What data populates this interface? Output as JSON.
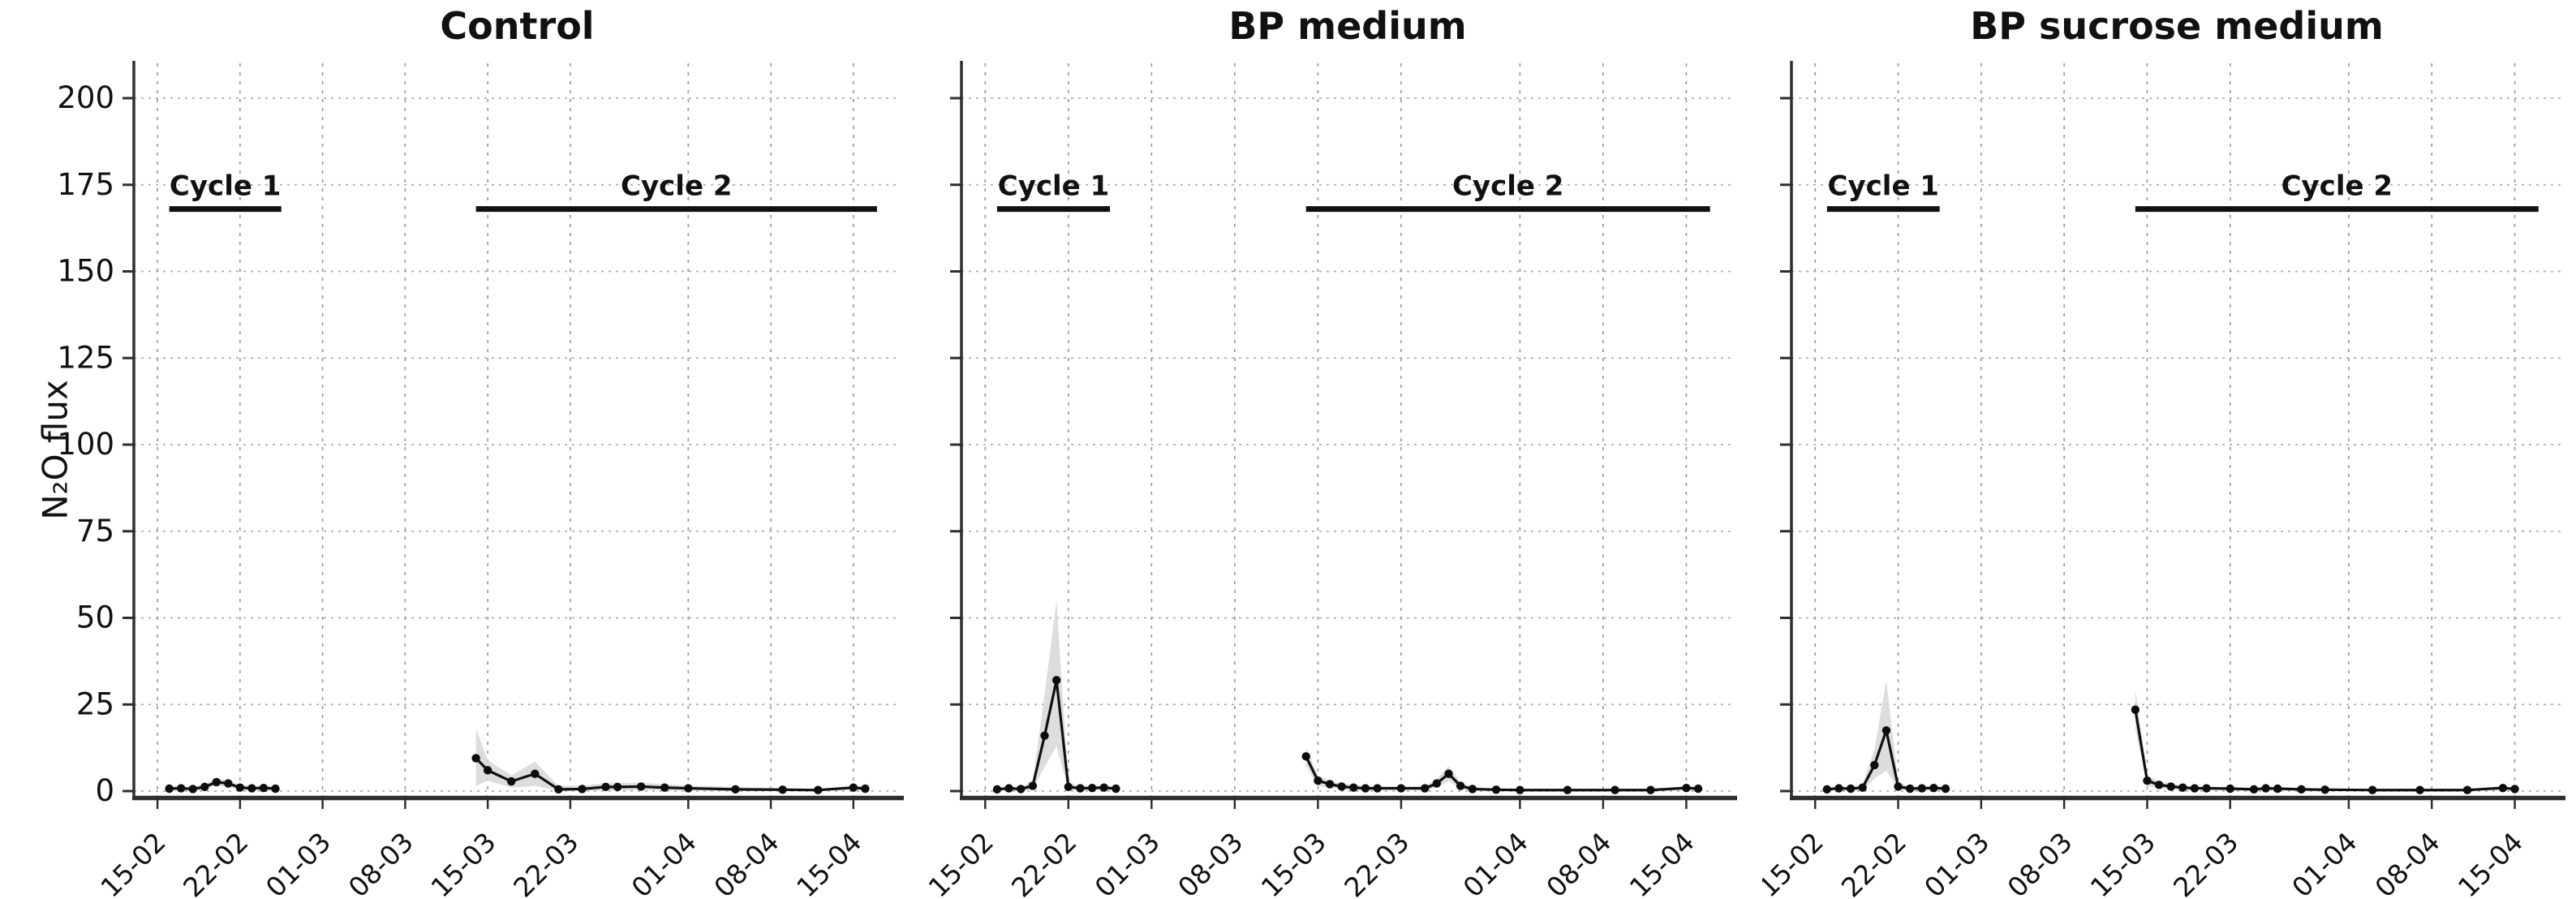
{
  "figure": {
    "ylabel": "N₂O flux",
    "colors": {
      "line": "#101010",
      "marker": "#0d0d0d",
      "ribbon": "#d7d7d7",
      "grid_vertical": "#8a8a8a",
      "grid_horizontal": "#a0a0a0",
      "axis": "#2e2e2e",
      "cycle_bar": "#111111",
      "background": "#ffffff"
    },
    "ylim": [
      -4,
      211
    ],
    "xlim_days": [
      13,
      78
    ],
    "yticks": [
      {
        "v": 0,
        "label": "0"
      },
      {
        "v": 25,
        "label": "25"
      },
      {
        "v": 50,
        "label": "50"
      },
      {
        "v": 75,
        "label": "75"
      },
      {
        "v": 100,
        "label": "100"
      },
      {
        "v": 125,
        "label": "125"
      },
      {
        "v": 150,
        "label": "150"
      },
      {
        "v": 175,
        "label": "175"
      },
      {
        "v": 200,
        "label": "200"
      }
    ],
    "xticks": [
      {
        "d": 15,
        "label": "15-02"
      },
      {
        "d": 22,
        "label": "22-02"
      },
      {
        "d": 29,
        "label": "01-03"
      },
      {
        "d": 36,
        "label": "08-03"
      },
      {
        "d": 43,
        "label": "15-03"
      },
      {
        "d": 50,
        "label": "22-03"
      },
      {
        "d": 60,
        "label": "01-04"
      },
      {
        "d": 67,
        "label": "08-04"
      },
      {
        "d": 74,
        "label": "15-04"
      }
    ]
  },
  "chart_data": {
    "type": "line",
    "title": "",
    "ylabel": "N₂O flux",
    "note": "x values are day numbers where 01-02 = day 1 (Feb=+0, Mar=+28, Apr=+59); shaded ribbons are lo/hi bands",
    "panels": [
      {
        "title": "Control",
        "show_ytick_labels": true,
        "cycle_bars": [
          {
            "label": "Cycle 1",
            "from": 16,
            "to": 25.5,
            "at": 168
          },
          {
            "label": "Cycle 2",
            "from": 42,
            "to": 76,
            "at": 168
          }
        ],
        "series": [
          {
            "name": "Cycle 1",
            "x": [
              16,
              17,
              18,
              19,
              20,
              21,
              22,
              23,
              24,
              25
            ],
            "y": [
              0.7,
              0.8,
              0.6,
              1.2,
              2.6,
              2.2,
              1.0,
              0.8,
              0.9,
              0.7
            ],
            "hi": [
              1.4,
              1.5,
              1.2,
              2.0,
              3.6,
              3.2,
              1.8,
              1.5,
              1.6,
              1.3
            ],
            "lo": [
              0.2,
              0.2,
              0.1,
              0.5,
              1.6,
              1.2,
              0.4,
              0.2,
              0.3,
              0.2
            ]
          },
          {
            "name": "Cycle 2",
            "x": [
              42,
              43,
              45,
              47,
              49,
              51,
              53,
              54,
              56,
              58,
              60,
              64,
              68,
              71,
              74,
              75
            ],
            "y": [
              9.5,
              6.0,
              2.8,
              5.0,
              0.5,
              0.6,
              1.2,
              1.2,
              1.3,
              1.0,
              0.8,
              0.5,
              0.4,
              0.3,
              1.0,
              0.7
            ],
            "hi": [
              18,
              9,
              4.5,
              8.5,
              1.5,
              1.5,
              2.3,
              2.3,
              2.4,
              2.0,
              1.6,
              1.2,
              0.9,
              0.6,
              1.6,
              1.1
            ],
            "lo": [
              1.5,
              3,
              1.0,
              1.5,
              0,
              0,
              0.2,
              0.2,
              0.3,
              0.2,
              0.1,
              0,
              0,
              0,
              0.4,
              0.2
            ]
          }
        ]
      },
      {
        "title": "BP medium",
        "show_ytick_labels": false,
        "cycle_bars": [
          {
            "label": "Cycle 1",
            "from": 16,
            "to": 25.5,
            "at": 168
          },
          {
            "label": "Cycle 2",
            "from": 42,
            "to": 76,
            "at": 168
          }
        ],
        "series": [
          {
            "name": "Cycle 1",
            "x": [
              16,
              17,
              18,
              19,
              20,
              21,
              22,
              23,
              24,
              25,
              26
            ],
            "y": [
              0.5,
              0.8,
              0.6,
              1.5,
              16,
              32,
              1.2,
              0.8,
              0.9,
              1.0,
              0.7
            ],
            "hi": [
              1.0,
              1.4,
              1.1,
              3.0,
              28,
              55,
              2.5,
              1.4,
              1.5,
              1.7,
              1.2
            ],
            "lo": [
              0.1,
              0.2,
              0.1,
              0.5,
              7,
              13,
              0.4,
              0.2,
              0.3,
              0.4,
              0.2
            ]
          },
          {
            "name": "Cycle 2",
            "x": [
              42,
              43,
              44,
              45,
              46,
              47,
              48,
              50,
              52,
              53,
              54,
              55,
              56,
              58,
              60,
              64,
              68,
              71,
              74,
              75
            ],
            "y": [
              10,
              3,
              2,
              1.3,
              1.0,
              0.8,
              0.8,
              0.8,
              0.8,
              2.2,
              5.0,
              1.5,
              0.6,
              0.4,
              0.3,
              0.3,
              0.3,
              0.3,
              0.9,
              0.7
            ],
            "hi": [
              12.5,
              4.5,
              3,
              2.2,
              1.8,
              1.5,
              1.4,
              1.4,
              1.5,
              3.5,
              7.2,
              2.5,
              1.2,
              0.8,
              0.6,
              0.6,
              0.6,
              0.6,
              1.4,
              1.1
            ],
            "lo": [
              7.5,
              1.5,
              1,
              0.5,
              0.3,
              0.2,
              0.2,
              0.2,
              0.2,
              1.0,
              3.0,
              0.6,
              0.1,
              0,
              0,
              0,
              0,
              0,
              0.3,
              0.2
            ]
          }
        ]
      },
      {
        "title": "BP sucrose medium",
        "show_ytick_labels": false,
        "cycle_bars": [
          {
            "label": "Cycle 1",
            "from": 16,
            "to": 25.5,
            "at": 168
          },
          {
            "label": "Cycle 2",
            "from": 42,
            "to": 76,
            "at": 168
          }
        ],
        "series": [
          {
            "name": "Cycle 1",
            "x": [
              16,
              17,
              18,
              19,
              20,
              21,
              22,
              23,
              24,
              25,
              26
            ],
            "y": [
              0.5,
              0.8,
              0.7,
              1.0,
              7.5,
              17.5,
              1.3,
              0.7,
              0.8,
              0.9,
              0.7
            ],
            "hi": [
              1.0,
              1.4,
              1.2,
              2.0,
              12,
              32,
              2.6,
              1.2,
              1.4,
              1.5,
              1.2
            ],
            "lo": [
              0.1,
              0.2,
              0.2,
              0.3,
              3.5,
              6,
              0.5,
              0.2,
              0.2,
              0.3,
              0.2
            ]
          },
          {
            "name": "Cycle 2",
            "x": [
              42,
              43,
              44,
              45,
              46,
              47,
              48,
              50,
              52,
              53,
              54,
              56,
              58,
              62,
              66,
              70,
              73,
              74
            ],
            "y": [
              23.5,
              3,
              1.8,
              1.3,
              1.0,
              0.8,
              0.8,
              0.7,
              0.5,
              0.8,
              0.7,
              0.5,
              0.4,
              0.3,
              0.3,
              0.3,
              0.9,
              0.6
            ],
            "hi": [
              29.5,
              4.5,
              2.8,
              2.1,
              1.7,
              1.4,
              1.3,
              1.2,
              0.9,
              1.3,
              1.2,
              0.9,
              0.8,
              0.6,
              0.6,
              0.6,
              1.4,
              1.0
            ],
            "lo": [
              18,
              1.5,
              0.8,
              0.5,
              0.3,
              0.2,
              0.3,
              0.2,
              0.1,
              0.3,
              0.2,
              0.1,
              0,
              0,
              0,
              0,
              0.3,
              0.2
            ]
          }
        ]
      }
    ]
  }
}
